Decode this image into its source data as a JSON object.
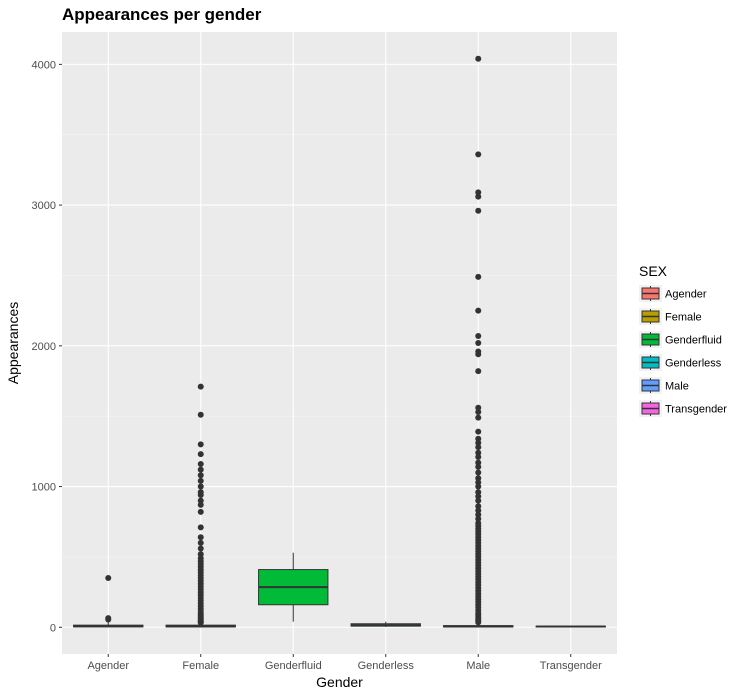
{
  "chart_data": {
    "type": "box",
    "title": "Appearances per gender",
    "xlabel": "Gender",
    "ylabel": "Appearances",
    "ylim": [
      -190,
      4230
    ],
    "yticks": [
      0,
      1000,
      2000,
      3000,
      4000
    ],
    "categories": [
      "Agender",
      "Female",
      "Genderfluid",
      "Genderless",
      "Male",
      "Transgender"
    ],
    "grid": true,
    "legend": {
      "title": "SEX",
      "placement": "right",
      "items": [
        {
          "label": "Agender",
          "color": "#F8766D"
        },
        {
          "label": "Female",
          "color": "#B79F00"
        },
        {
          "label": "Genderfluid",
          "color": "#00BA38"
        },
        {
          "label": "Genderless",
          "color": "#00BFC4"
        },
        {
          "label": "Male",
          "color": "#619CFF"
        },
        {
          "label": "Transgender",
          "color": "#F564E3"
        }
      ]
    },
    "series": [
      {
        "name": "Agender",
        "color": "#F8766D",
        "stats": {
          "min": 1,
          "q1": 3,
          "median": 7,
          "q3": 15,
          "max": 40
        },
        "outliers": [
          350,
          65,
          55
        ]
      },
      {
        "name": "Female",
        "color": "#B79F00",
        "stats": {
          "min": 1,
          "q1": 3,
          "median": 6,
          "q3": 15,
          "max": 30
        },
        "outliers": [
          1710,
          1510,
          1300,
          1230,
          1160,
          1120,
          1080,
          1040,
          1000,
          960,
          940,
          900,
          870,
          820,
          710,
          640,
          600,
          560,
          520,
          490,
          470,
          450,
          430,
          410,
          390,
          370,
          350,
          330,
          310,
          290,
          270,
          250,
          230,
          210,
          190,
          170,
          150,
          130,
          110,
          95,
          85,
          75,
          65,
          55,
          45,
          38,
          33
        ]
      },
      {
        "name": "Genderfluid",
        "color": "#00BA38",
        "stats": {
          "min": 40,
          "q1": 160,
          "median": 285,
          "q3": 410,
          "max": 530
        },
        "outliers": []
      },
      {
        "name": "Genderless",
        "color": "#00BFC4",
        "stats": {
          "min": 2,
          "q1": 8,
          "median": 15,
          "q3": 25,
          "max": 40
        },
        "outliers": []
      },
      {
        "name": "Male",
        "color": "#619CFF",
        "stats": {
          "min": 1,
          "q1": 2,
          "median": 5,
          "q3": 12,
          "max": 28
        },
        "outliers": [
          4040,
          3360,
          3090,
          3060,
          2960,
          2490,
          2250,
          2070,
          2020,
          1960,
          1940,
          1820,
          1560,
          1530,
          1490,
          1390,
          1340,
          1310,
          1280,
          1240,
          1210,
          1170,
          1140,
          1100,
          1060,
          1030,
          1000,
          960,
          930,
          900,
          860,
          830,
          800,
          770,
          740,
          720,
          700,
          680,
          660,
          640,
          620,
          600,
          580,
          560,
          540,
          520,
          500,
          480,
          460,
          440,
          420,
          400,
          380,
          360,
          340,
          320,
          300,
          280,
          260,
          240,
          220,
          200,
          180,
          160,
          140,
          120,
          100,
          85,
          70,
          55,
          45,
          35
        ]
      },
      {
        "name": "Transgender",
        "color": "#F564E3",
        "stats": {
          "min": 1,
          "q1": 3,
          "median": 5,
          "q3": 7,
          "max": 10
        },
        "outliers": []
      }
    ]
  }
}
